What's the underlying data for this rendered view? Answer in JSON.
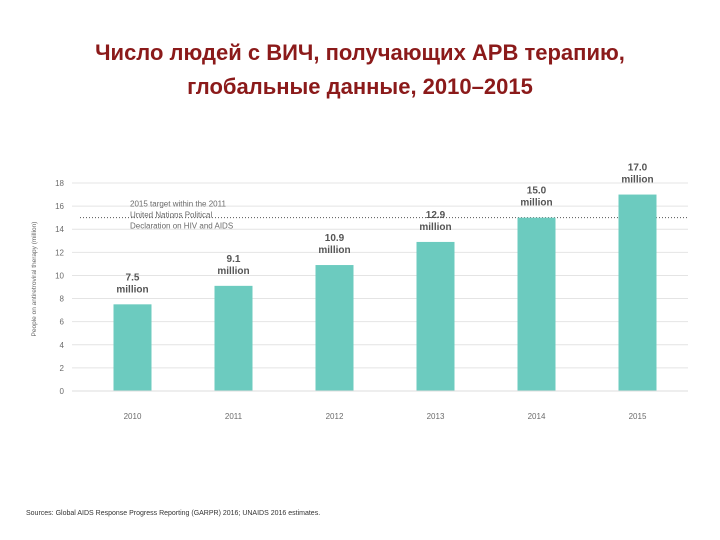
{
  "title": {
    "line1": "Число людей с ВИЧ, получающих АРВ терапию,",
    "line2": "глобальные данные, 2010–2015"
  },
  "sources": "Sources: Global AIDS Response Progress Reporting (GARPR) 2016; UNAIDS 2016 estimates.",
  "chart_data": {
    "type": "bar",
    "categories": [
      "2010",
      "2011",
      "2012",
      "2013",
      "2014",
      "2015"
    ],
    "values": [
      7.5,
      9.1,
      10.9,
      12.9,
      15.0,
      17.0
    ],
    "data_labels": [
      [
        "7.5",
        "million"
      ],
      [
        "9.1",
        "million"
      ],
      [
        "10.9",
        "million"
      ],
      [
        "12.9",
        "million"
      ],
      [
        "15.0",
        "million"
      ],
      [
        "17.0",
        "million"
      ]
    ],
    "ylabel": "People on antiretroviral therapy (million)",
    "ylim": [
      0,
      18
    ],
    "yticks": [
      0,
      2,
      4,
      6,
      8,
      10,
      12,
      14,
      16,
      18
    ],
    "grid": true,
    "bar_color": "#6ccbbf",
    "target": {
      "value": 15,
      "label_lines": [
        "2015 target within the 2011",
        "United Nations Political",
        "Declaration on HIV and AIDS"
      ]
    }
  }
}
